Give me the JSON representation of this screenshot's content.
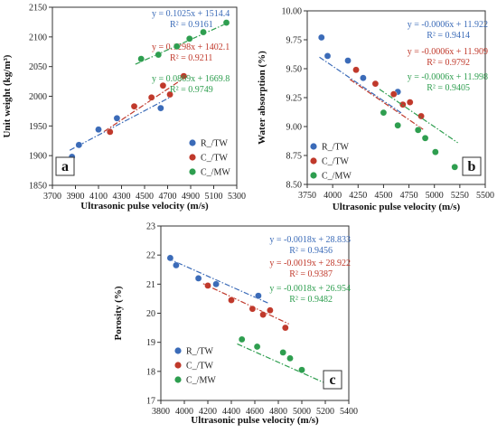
{
  "colors": {
    "R_TW": "#3b6bb8",
    "C_TW": "#c0392b",
    "C_MW": "#2e9e4f"
  },
  "chart_data": [
    {
      "type": "scatter",
      "panel": "a",
      "xlabel": "Ultrasonic pulse velocity (m/s)",
      "ylabel": "Unit weight (kg/m³)",
      "xlim": [
        3700,
        5300
      ],
      "ylim": [
        1850,
        2150
      ],
      "xticks": [
        "3700",
        "3900",
        "4100",
        "4300",
        "4500",
        "4700",
        "4900",
        "5100",
        "5300"
      ],
      "yticks": [
        "1850",
        "1900",
        "1950",
        "2000",
        "2050",
        "2100",
        "2150"
      ],
      "legend_position": "bottom-right",
      "series": [
        {
          "name": "R_/TW",
          "color": "#3b6bb8",
          "points": [
            [
              3870,
              1898
            ],
            [
              3930,
              1918
            ],
            [
              4100,
              1944
            ],
            [
              4260,
              1963
            ],
            [
              4640,
              1980
            ]
          ],
          "fit": {
            "m": 0.1025,
            "b": 1514.4,
            "x0": 3850,
            "x1": 4720
          },
          "equation": "y = 0.1025x + 1514.4",
          "r2": "R² = 0.9161"
        },
        {
          "name": "C_/TW",
          "color": "#c0392b",
          "points": [
            [
              4200,
              1940
            ],
            [
              4410,
              1983
            ],
            [
              4560,
              1998
            ],
            [
              4660,
              2018
            ],
            [
              4720,
              2003
            ],
            [
              4840,
              2034
            ]
          ],
          "fit": {
            "m": 0.1298,
            "b": 1402.1,
            "x0": 4150,
            "x1": 4880
          },
          "equation": "y = 0.1298x + 1402.1",
          "r2": "R² = 0.9211"
        },
        {
          "name": "C_/MW",
          "color": "#2e9e4f",
          "points": [
            [
              4470,
              2063
            ],
            [
              4620,
              2070
            ],
            [
              4780,
              2084
            ],
            [
              4890,
              2097
            ],
            [
              5010,
              2108
            ],
            [
              5210,
              2124
            ]
          ],
          "fit": {
            "m": 0.0869,
            "b": 1669.8,
            "x0": 4420,
            "x1": 5230
          },
          "equation": "y = 0.0869x + 1669.8",
          "r2": "R² = 0.9749"
        }
      ]
    },
    {
      "type": "scatter",
      "panel": "b",
      "xlabel": "Ultrasonic pulse velocity (m/s)",
      "ylabel": "Water absorption (%)",
      "xlim": [
        3750,
        5500
      ],
      "ylim": [
        8.5,
        10.0
      ],
      "xticks": [
        "3750",
        "4000",
        "4250",
        "4500",
        "4750",
        "5000",
        "5250",
        "5500"
      ],
      "yticks": [
        "8.50",
        "8.75",
        "9.00",
        "9.25",
        "9.50",
        "9.75",
        "10.00"
      ],
      "legend_position": "bottom-left",
      "series": [
        {
          "name": "R_/TW",
          "color": "#3b6bb8",
          "points": [
            [
              3890,
              9.77
            ],
            [
              3950,
              9.61
            ],
            [
              4150,
              9.57
            ],
            [
              4300,
              9.42
            ],
            [
              4640,
              9.3
            ]
          ],
          "fit": {
            "m": -0.0006,
            "b": 11.922,
            "x0": 3870,
            "x1": 4680
          },
          "equation": "y = -0.0006x + 11.922",
          "r2": "R² = 0.9414"
        },
        {
          "name": "C_/TW",
          "color": "#c0392b",
          "points": [
            [
              4230,
              9.49
            ],
            [
              4420,
              9.37
            ],
            [
              4600,
              9.28
            ],
            [
              4690,
              9.19
            ],
            [
              4760,
              9.21
            ],
            [
              4870,
              9.09
            ]
          ],
          "fit": {
            "m": -0.0006,
            "b": 11.909,
            "x0": 4170,
            "x1": 4900
          },
          "equation": "y = -0.0006x + 11.909",
          "r2": "R² = 0.9792"
        },
        {
          "name": "C_/MW",
          "color": "#2e9e4f",
          "points": [
            [
              4500,
              9.12
            ],
            [
              4640,
              9.01
            ],
            [
              4840,
              8.97
            ],
            [
              4910,
              8.9
            ],
            [
              5010,
              8.78
            ],
            [
              5200,
              8.65
            ]
          ],
          "fit": {
            "m": -0.0006,
            "b": 11.998,
            "x0": 4460,
            "x1": 5230
          },
          "equation": "y = -0.0006x + 11.998",
          "r2": "R² = 0.9405"
        }
      ]
    },
    {
      "type": "scatter",
      "panel": "c",
      "xlabel": "Ultrasonic pulse velocity (m/s)",
      "ylabel": "Porosity (%)",
      "xlim": [
        3800,
        5400
      ],
      "ylim": [
        17,
        23
      ],
      "xticks": [
        "3800",
        "4000",
        "4200",
        "4400",
        "4600",
        "4800",
        "5000",
        "5200",
        "5400"
      ],
      "yticks": [
        "17",
        "18",
        "19",
        "20",
        "21",
        "22",
        "23"
      ],
      "legend_position": "bottom-left",
      "series": [
        {
          "name": "R_/TW",
          "color": "#3b6bb8",
          "points": [
            [
              3880,
              21.9
            ],
            [
              3930,
              21.65
            ],
            [
              4120,
              21.2
            ],
            [
              4270,
              21.0
            ],
            [
              4630,
              20.6
            ]
          ],
          "fit": {
            "m": -0.0018,
            "b": 28.833,
            "x0": 3860,
            "x1": 4720
          },
          "equation": "y = -0.0018x + 28.833",
          "r2": "R² = 0.9456"
        },
        {
          "name": "C_/TW",
          "color": "#c0392b",
          "points": [
            [
              4200,
              20.95
            ],
            [
              4400,
              20.45
            ],
            [
              4580,
              20.15
            ],
            [
              4670,
              19.95
            ],
            [
              4730,
              20.1
            ],
            [
              4860,
              19.5
            ]
          ],
          "fit": {
            "m": -0.0019,
            "b": 28.922,
            "x0": 4160,
            "x1": 4890
          },
          "equation": "y = -0.0019x + 28.922",
          "r2": "R² = 0.9387"
        },
        {
          "name": "C_/MW",
          "color": "#2e9e4f",
          "points": [
            [
              4490,
              19.1
            ],
            [
              4620,
              18.85
            ],
            [
              4840,
              18.65
            ],
            [
              4900,
              18.45
            ],
            [
              5000,
              18.05
            ],
            [
              5210,
              17.9
            ]
          ],
          "fit": {
            "m": -0.0018,
            "b": 26.954,
            "x0": 4450,
            "x1": 5240
          },
          "equation": "y = -0.0018x + 26.954",
          "r2": "R² = 0.9482"
        }
      ]
    }
  ]
}
